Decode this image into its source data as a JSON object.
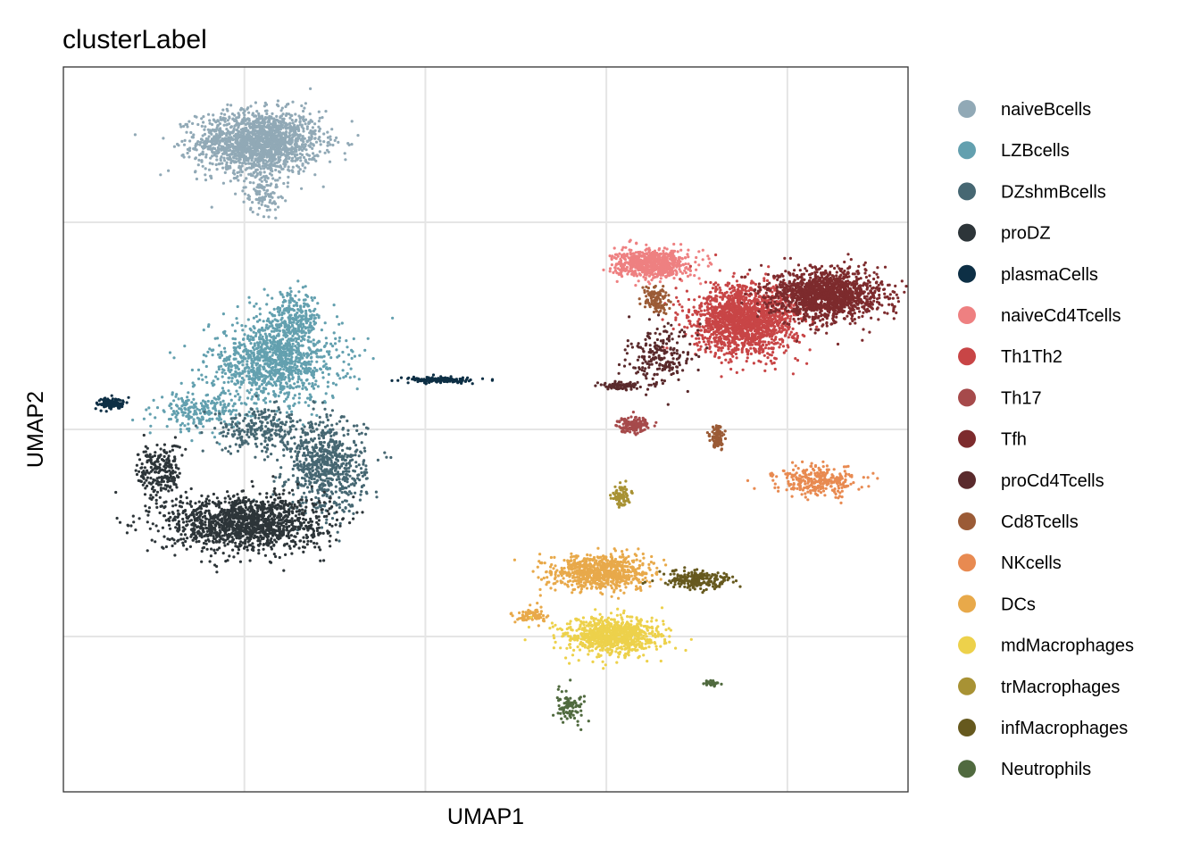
{
  "chart_data": {
    "type": "scatter",
    "title": "clusterLabel",
    "xlabel": "UMAP1",
    "ylabel": "UMAP2",
    "xlim": [
      -14,
      14
    ],
    "ylim": [
      -16,
      12
    ],
    "grid": true,
    "legend_position": "right",
    "series": [
      {
        "name": "naiveBcells",
        "color": "#91a9b6",
        "clusters": [
          {
            "x": -7.5,
            "y": 9.1,
            "sx": 1.7,
            "sy": 1.0,
            "n": 1700
          },
          {
            "x": -7.4,
            "y": 7.2,
            "sx": 0.5,
            "sy": 0.7,
            "n": 120
          }
        ]
      },
      {
        "name": "LZBcells",
        "color": "#63a0af",
        "clusters": [
          {
            "x": -7.0,
            "y": 0.6,
            "sx": 1.8,
            "sy": 1.3,
            "n": 1100
          },
          {
            "x": -6.4,
            "y": 2.3,
            "sx": 0.8,
            "sy": 0.8,
            "n": 250
          },
          {
            "x": -9.5,
            "y": -1.3,
            "sx": 1.1,
            "sy": 0.6,
            "n": 220
          }
        ]
      },
      {
        "name": "DZshmBcells",
        "color": "#466772",
        "clusters": [
          {
            "x": -5.3,
            "y": -3.4,
            "sx": 1.1,
            "sy": 1.5,
            "n": 700
          },
          {
            "x": -7.5,
            "y": -2.0,
            "sx": 1.2,
            "sy": 0.7,
            "n": 250
          }
        ]
      },
      {
        "name": "proDZ",
        "color": "#2d3539",
        "clusters": [
          {
            "x": -8.0,
            "y": -5.6,
            "sx": 2.2,
            "sy": 0.9,
            "n": 1400
          },
          {
            "x": -10.8,
            "y": -3.6,
            "sx": 0.6,
            "sy": 0.9,
            "n": 220
          }
        ]
      },
      {
        "name": "plasmaCells",
        "color": "#0d2f45",
        "clusters": [
          {
            "x": -12.4,
            "y": -1.0,
            "sx": 0.4,
            "sy": 0.18,
            "n": 120
          },
          {
            "x": -1.5,
            "y": -0.1,
            "sx": 0.9,
            "sy": 0.09,
            "n": 160
          }
        ]
      },
      {
        "name": "naiveCd4Tcells",
        "color": "#ee8081",
        "clusters": [
          {
            "x": 5.5,
            "y": 4.4,
            "sx": 1.0,
            "sy": 0.45,
            "n": 700
          }
        ]
      },
      {
        "name": "Th1Th2",
        "color": "#c84546",
        "clusters": [
          {
            "x": 8.6,
            "y": 2.2,
            "sx": 1.4,
            "sy": 1.1,
            "n": 1700
          }
        ]
      },
      {
        "name": "Th17",
        "color": "#a64a4b",
        "clusters": [
          {
            "x": 4.9,
            "y": -1.8,
            "sx": 0.45,
            "sy": 0.25,
            "n": 150
          }
        ]
      },
      {
        "name": "Tfh",
        "color": "#7d2b2d",
        "clusters": [
          {
            "x": 11.3,
            "y": 3.2,
            "sx": 1.5,
            "sy": 0.8,
            "n": 1500
          }
        ]
      },
      {
        "name": "proCd4Tcells",
        "color": "#5a2a2c",
        "clusters": [
          {
            "x": 5.8,
            "y": 0.8,
            "sx": 0.9,
            "sy": 0.9,
            "n": 220
          },
          {
            "x": 4.5,
            "y": -0.3,
            "sx": 0.6,
            "sy": 0.15,
            "n": 80
          }
        ]
      },
      {
        "name": "Cd8Tcells",
        "color": "#9b5b36",
        "clusters": [
          {
            "x": 5.6,
            "y": 3.0,
            "sx": 0.35,
            "sy": 0.4,
            "n": 120
          },
          {
            "x": 7.7,
            "y": -2.3,
            "sx": 0.2,
            "sy": 0.4,
            "n": 100
          }
        ]
      },
      {
        "name": "NKcells",
        "color": "#e88a51",
        "clusters": [
          {
            "x": 11.0,
            "y": -4.0,
            "sx": 1.1,
            "sy": 0.45,
            "n": 300
          }
        ]
      },
      {
        "name": "DCs",
        "color": "#e8a94a",
        "clusters": [
          {
            "x": 3.8,
            "y": -7.5,
            "sx": 1.3,
            "sy": 0.55,
            "n": 800
          },
          {
            "x": 1.5,
            "y": -9.2,
            "sx": 0.5,
            "sy": 0.25,
            "n": 80
          }
        ]
      },
      {
        "name": "mdMacrophages",
        "color": "#edd14b",
        "clusters": [
          {
            "x": 4.2,
            "y": -10.0,
            "sx": 1.3,
            "sy": 0.6,
            "n": 900
          }
        ]
      },
      {
        "name": "trMacrophages",
        "color": "#a89234",
        "clusters": [
          {
            "x": 4.5,
            "y": -4.6,
            "sx": 0.25,
            "sy": 0.4,
            "n": 90
          }
        ]
      },
      {
        "name": "infMacrophages",
        "color": "#66591e",
        "clusters": [
          {
            "x": 7.0,
            "y": -7.8,
            "sx": 1.0,
            "sy": 0.3,
            "n": 220
          }
        ]
      },
      {
        "name": "Neutrophils",
        "color": "#506a3f",
        "clusters": [
          {
            "x": 2.8,
            "y": -12.7,
            "sx": 0.45,
            "sy": 0.5,
            "n": 90
          },
          {
            "x": 7.5,
            "y": -11.8,
            "sx": 0.2,
            "sy": 0.1,
            "n": 30
          }
        ]
      }
    ]
  }
}
